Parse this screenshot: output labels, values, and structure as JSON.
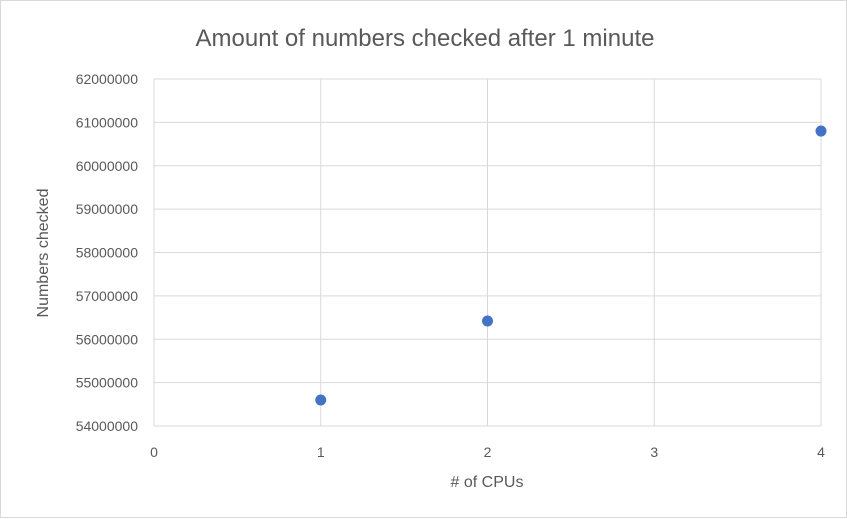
{
  "chart_data": {
    "type": "scatter",
    "title": "Amount of numbers checked after 1 minute",
    "xlabel": "# of CPUs",
    "ylabel": "Numbers checked",
    "xlim": [
      0,
      4
    ],
    "ylim": [
      54000000,
      62000000
    ],
    "x_ticks": [
      0,
      1,
      2,
      3,
      4
    ],
    "y_ticks": [
      54000000,
      55000000,
      56000000,
      57000000,
      58000000,
      59000000,
      60000000,
      61000000,
      62000000
    ],
    "x_tick_labels": [
      "0",
      "1",
      "2",
      "3",
      "4"
    ],
    "y_tick_labels": [
      "54000000",
      "55000000",
      "56000000",
      "57000000",
      "58000000",
      "59000000",
      "60000000",
      "61000000",
      "62000000"
    ],
    "grid": true,
    "legend": "none",
    "series": [
      {
        "color": "#4472c4",
        "points": [
          {
            "x": 1,
            "y": 54600000
          },
          {
            "x": 2,
            "y": 56420000
          },
          {
            "x": 4,
            "y": 60800000
          }
        ]
      }
    ]
  }
}
